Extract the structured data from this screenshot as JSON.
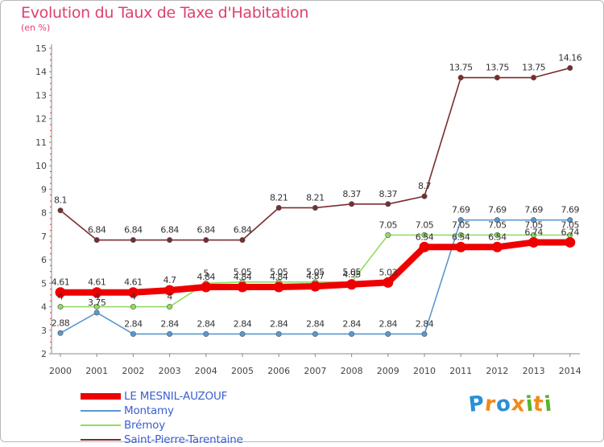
{
  "title": "Evolution du Taux de Taxe d'Habitation",
  "subtitle": "(en %)",
  "logo": {
    "letters": [
      "P",
      "r",
      "o",
      "x",
      "i",
      "t",
      "i"
    ],
    "colors": [
      "#2a8fd6",
      "#f08a1c",
      "#2a8fd6",
      "#f08a1c",
      "#55b52a",
      "#f08a1c",
      "#55b52a"
    ]
  },
  "chart_data": {
    "type": "line",
    "x": [
      "2000",
      "2001",
      "2002",
      "2003",
      "2004",
      "2005",
      "2006",
      "2007",
      "2008",
      "2009",
      "2010",
      "2011",
      "2012",
      "2013",
      "2014"
    ],
    "yticks": [
      "2",
      "3",
      "4",
      "5",
      "6",
      "7",
      "8",
      "9",
      "10",
      "11",
      "12",
      "13",
      "14",
      "15"
    ],
    "ylim": [
      2,
      15
    ],
    "grid": false,
    "legend_position": "bottom-left",
    "series": [
      {
        "name": "LE MESNIL-AUZOUF",
        "color": "#ee0000",
        "values": [
          4.61,
          4.61,
          4.61,
          4.7,
          4.84,
          4.84,
          4.84,
          4.87,
          4.95,
          5.03,
          6.54,
          6.54,
          6.54,
          6.74,
          6.74
        ],
        "labels": [
          "4.61",
          "4.61",
          "4.61",
          "4.7",
          "4.84",
          "4.84",
          "4.84",
          "4.87",
          "4.95",
          "5.03",
          "6.54",
          "6.54",
          "6.54",
          "6.74",
          "6.74"
        ]
      },
      {
        "name": "Montamy",
        "color": "#5b97cf",
        "values": [
          2.88,
          3.75,
          2.84,
          2.84,
          2.84,
          2.84,
          2.84,
          2.84,
          2.84,
          2.84,
          2.84,
          7.69,
          7.69,
          7.69,
          7.69
        ],
        "labels": [
          "2.88",
          "3.75",
          "2.84",
          "2.84",
          "2.84",
          "2.84",
          "2.84",
          "2.84",
          "2.84",
          "2.84",
          "2.84",
          "7.69",
          "7.69",
          "7.69",
          "7.69"
        ]
      },
      {
        "name": "Brémoy",
        "color": "#90dc60",
        "values": [
          4,
          4,
          4,
          4,
          5,
          5.05,
          5.05,
          5.05,
          5.05,
          7.05,
          7.05,
          7.05,
          7.05,
          7.05,
          7.05
        ],
        "labels": [
          "4",
          "4",
          "4",
          "4",
          "5",
          "5.05",
          "5.05",
          "5.05",
          "5.05",
          "7.05",
          "7.05",
          "7.05",
          "7.05",
          "7.05",
          "7.05"
        ]
      },
      {
        "name": "Saint-Pierre-Tarentaine",
        "color": "#7a2d2d",
        "values": [
          8.1,
          6.84,
          6.84,
          6.84,
          6.84,
          6.84,
          8.21,
          8.21,
          8.37,
          8.37,
          8.7,
          13.75,
          13.75,
          13.75,
          14.16
        ],
        "labels": [
          "8.1",
          "6.84",
          "6.84",
          "6.84",
          "6.84",
          "6.84",
          "8.21",
          "8.21",
          "8.37",
          "8.37",
          "8.7",
          "13.75",
          "13.75",
          "13.75",
          "14.16"
        ]
      }
    ]
  }
}
